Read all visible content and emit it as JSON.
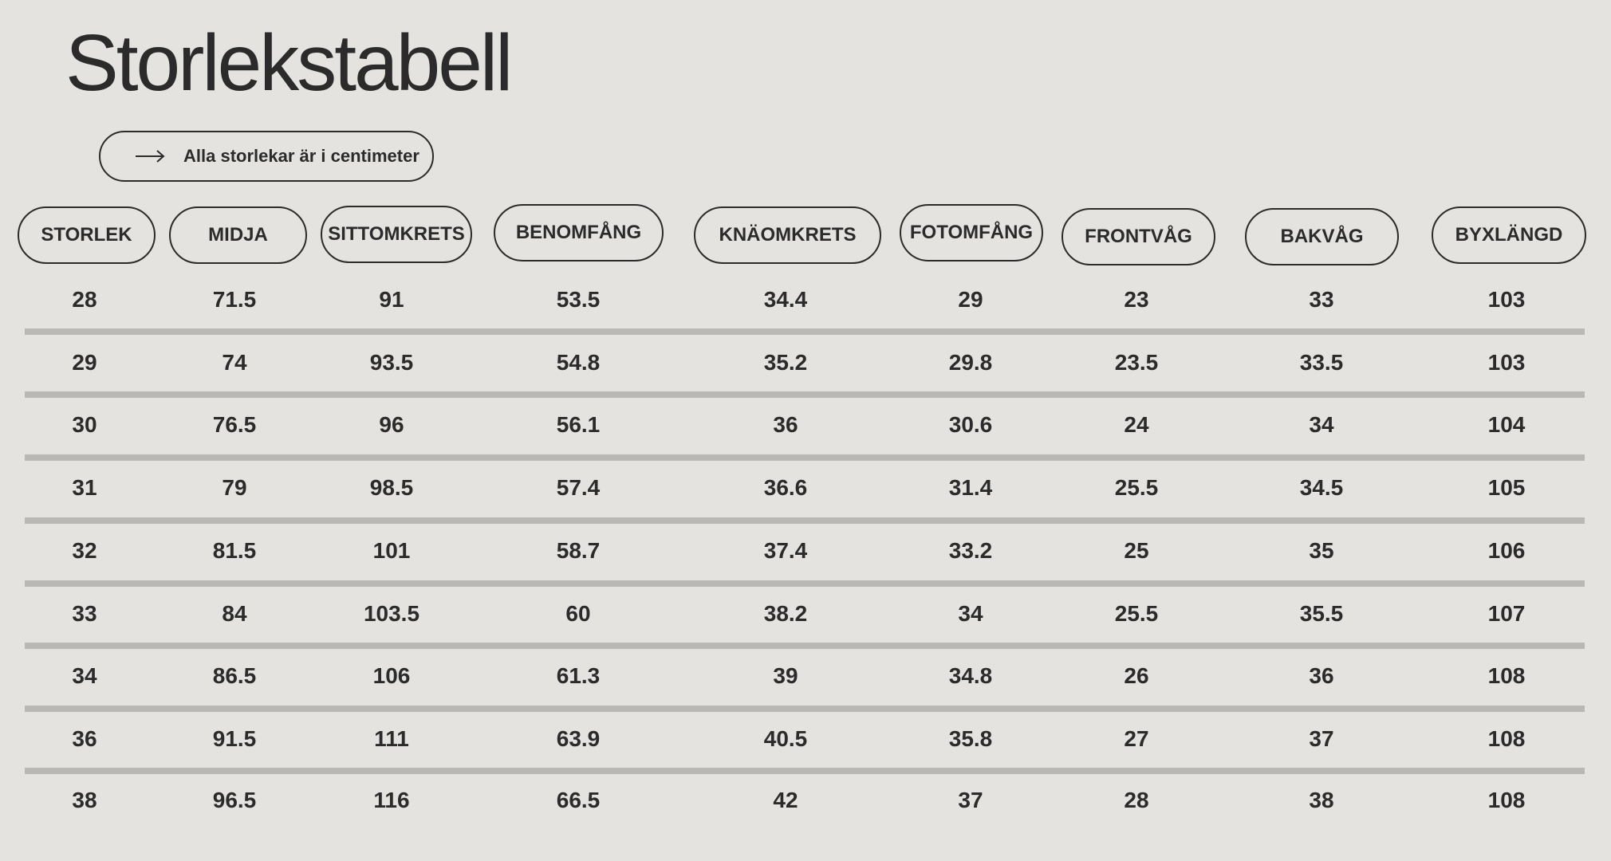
{
  "title": "Storlekstabell",
  "note": {
    "icon": "arrow-right-icon",
    "text": "Alla storlekar är i centimeter"
  },
  "colors": {
    "background": "#e4e3df",
    "text": "#2b2b2b",
    "divider": "#b9b8b4"
  },
  "table": {
    "headers": [
      "STORLEK",
      "MIDJA",
      "SITTOMKRETS",
      "BENOMFÅNG",
      "KNÄOMKRETS",
      "FOTOMFÅNG",
      "FRONTVÅG",
      "BAKVÅG",
      "BYXLÄNGD"
    ],
    "rows": [
      [
        "28",
        "71.5",
        "91",
        "53.5",
        "34.4",
        "29",
        "23",
        "33",
        "103"
      ],
      [
        "29",
        "74",
        "93.5",
        "54.8",
        "35.2",
        "29.8",
        "23.5",
        "33.5",
        "103"
      ],
      [
        "30",
        "76.5",
        "96",
        "56.1",
        "36",
        "30.6",
        "24",
        "34",
        "104"
      ],
      [
        "31",
        "79",
        "98.5",
        "57.4",
        "36.6",
        "31.4",
        "25.5",
        "34.5",
        "105"
      ],
      [
        "32",
        "81.5",
        "101",
        "58.7",
        "37.4",
        "33.2",
        "25",
        "35",
        "106"
      ],
      [
        "33",
        "84",
        "103.5",
        "60",
        "38.2",
        "34",
        "25.5",
        "35.5",
        "107"
      ],
      [
        "34",
        "86.5",
        "106",
        "61.3",
        "39",
        "34.8",
        "26",
        "36",
        "108"
      ],
      [
        "36",
        "91.5",
        "111",
        "63.9",
        "40.5",
        "35.8",
        "27",
        "37",
        "108"
      ],
      [
        "38",
        "96.5",
        "116",
        "66.5",
        "42",
        "37",
        "28",
        "38",
        "108"
      ]
    ]
  }
}
